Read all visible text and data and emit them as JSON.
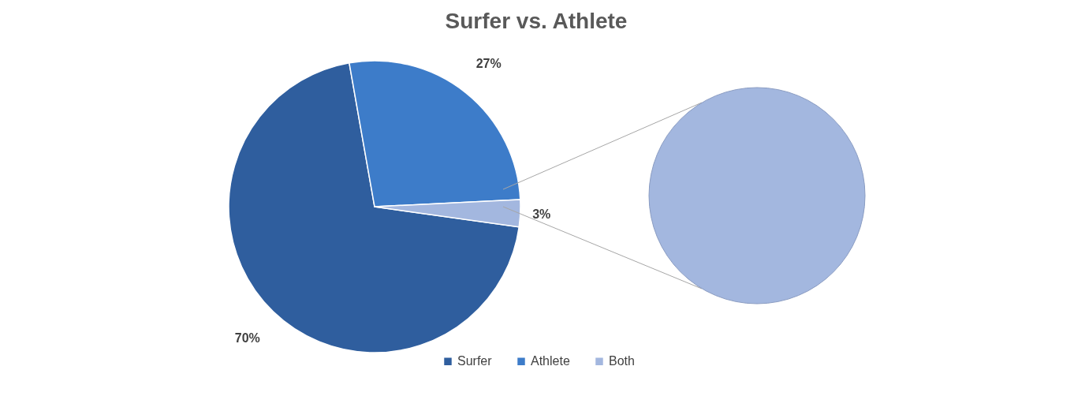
{
  "chart_data": {
    "type": "pie",
    "title": "Surfer vs. Athlete",
    "categories": [
      "Surfer",
      "Athlete",
      "Both"
    ],
    "values": [
      70,
      27,
      3
    ],
    "colors": [
      "#2f5e9e",
      "#3d7cc9",
      "#a3b7df"
    ],
    "value_labels": [
      "70%",
      "27%",
      "3%"
    ],
    "legend": "bottom"
  }
}
